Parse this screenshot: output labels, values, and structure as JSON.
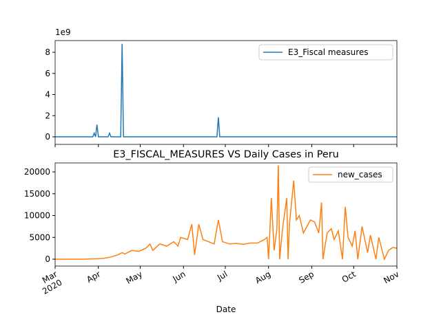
{
  "chart_data": [
    {
      "type": "line",
      "y_offset_label": "1e9",
      "legend": "upper right",
      "xlim": [
        0,
        245
      ],
      "xticks": [
        0,
        31,
        61,
        92,
        122,
        153,
        184,
        214,
        245
      ],
      "ylim": [
        -0.715,
        9.11
      ],
      "yticks": [
        0,
        2,
        4,
        6,
        8
      ],
      "x": [
        0,
        27,
        28,
        29,
        30,
        31,
        38,
        39,
        40,
        47,
        48,
        49,
        116,
        117,
        118,
        245
      ],
      "series": [
        {
          "name": "E3_Fiscal measures",
          "color": "#1f77b4",
          "values": [
            0,
            0,
            0.35,
            0,
            1.15,
            0,
            0,
            0.35,
            0,
            0,
            8.8,
            0,
            0,
            1.85,
            0,
            0
          ]
        }
      ]
    },
    {
      "type": "line",
      "title": "E3_FISCAL_MEASURES VS Daily Cases in Peru",
      "x_label": "Date",
      "legend": "upper right",
      "xlim": [
        0,
        245
      ],
      "xticks": [
        {
          "value": 0,
          "label": "Mar\n2020"
        },
        {
          "value": 31,
          "label": "Apr"
        },
        {
          "value": 61,
          "label": "May"
        },
        {
          "value": 92,
          "label": "Jun"
        },
        {
          "value": 122,
          "label": "Jul"
        },
        {
          "value": 153,
          "label": "Aug"
        },
        {
          "value": 184,
          "label": "Sep"
        },
        {
          "value": 214,
          "label": "Oct"
        },
        {
          "value": 245,
          "label": "Nov"
        }
      ],
      "ylim": [
        -1575,
        22050
      ],
      "yticks": [
        0,
        5000,
        10000,
        15000,
        20000
      ],
      "x": [
        0,
        20,
        30,
        35,
        40,
        45,
        48,
        50,
        55,
        60,
        65,
        68,
        70,
        75,
        80,
        85,
        88,
        90,
        95,
        98,
        100,
        103,
        106,
        110,
        114,
        117,
        120,
        125,
        130,
        135,
        140,
        145,
        150,
        152,
        153,
        155,
        157,
        159,
        160,
        161,
        163,
        166,
        167,
        168,
        171,
        173,
        175,
        178,
        183,
        186,
        189,
        191,
        192,
        195,
        198,
        200,
        203,
        206,
        208,
        210,
        213,
        215,
        217,
        220,
        224,
        226,
        230,
        232,
        236,
        239,
        242,
        245
      ],
      "series": [
        {
          "name": "new_cases",
          "color": "#ff7f0e",
          "values": [
            0,
            0,
            100,
            200,
            500,
            1000,
            1500,
            1200,
            2000,
            1800,
            2500,
            3500,
            2000,
            3500,
            3000,
            4000,
            3000,
            5000,
            4500,
            8000,
            1000,
            8000,
            4500,
            4000,
            3500,
            9000,
            4000,
            3500,
            3600,
            3400,
            3700,
            3700,
            4500,
            5000,
            0,
            14000,
            2000,
            7000,
            21500,
            0,
            7000,
            14000,
            0,
            8000,
            18000,
            9000,
            10000,
            6000,
            9000,
            8500,
            6000,
            13000,
            0,
            6000,
            7000,
            4500,
            6500,
            0,
            12000,
            5000,
            3000,
            6500,
            0,
            7500,
            1500,
            5500,
            0,
            5000,
            0,
            2000,
            2700,
            2500
          ]
        }
      ]
    }
  ]
}
